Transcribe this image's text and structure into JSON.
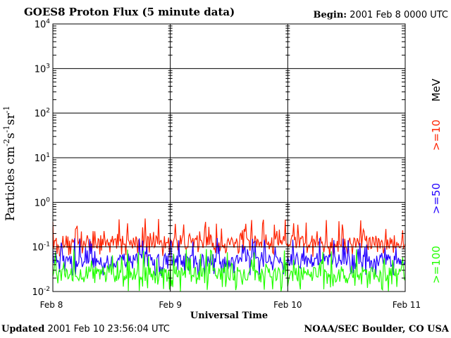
{
  "header": {
    "title": "GOES8 Proton Flux (5 minute data)",
    "begin_label": "Begin:",
    "begin_value": "2001 Feb 8 0000 UTC"
  },
  "footer": {
    "updated_label": "Updated",
    "updated_value": "2001 Feb 10 23:56:04 UTC",
    "credit": "NOAA/SEC Boulder, CO USA"
  },
  "chart_data": {
    "type": "line",
    "title": "GOES8 Proton Flux (5 minute data)",
    "xlabel": "Universal Time",
    "ylabel": "Particles cm⁻²s⁻¹sr⁻¹",
    "yscale": "log",
    "ylim": [
      0.01,
      10000
    ],
    "y_ticks": [
      {
        "value": 0.01,
        "base": "10",
        "exp": "-2"
      },
      {
        "value": 0.1,
        "base": "10",
        "exp": "-1"
      },
      {
        "value": 1,
        "base": "10",
        "exp": "0"
      },
      {
        "value": 10,
        "base": "10",
        "exp": "1"
      },
      {
        "value": 100,
        "base": "10",
        "exp": "2"
      },
      {
        "value": 1000,
        "base": "10",
        "exp": "3"
      },
      {
        "value": 10000,
        "base": "10",
        "exp": "4"
      }
    ],
    "xlim": [
      "2001-02-08",
      "2001-02-11"
    ],
    "x_ticks": [
      {
        "value": "2001-02-08",
        "label": "Feb 8"
      },
      {
        "value": "2001-02-09",
        "label": "Feb 9"
      },
      {
        "value": "2001-02-10",
        "label": "Feb 10"
      },
      {
        "value": "2001-02-11",
        "label": "Feb 11"
      }
    ],
    "grid": true,
    "unit_label": "MeV",
    "series": [
      {
        "name": ">=10",
        "color": "#ff2200",
        "typical": 0.13,
        "low": 0.06,
        "high": 0.45
      },
      {
        "name": ">=50",
        "color": "#2200ff",
        "typical": 0.05,
        "low": 0.022,
        "high": 0.16
      },
      {
        "name": ">=100",
        "color": "#22ff00",
        "typical": 0.025,
        "low": 0.01,
        "high": 0.09
      }
    ]
  }
}
